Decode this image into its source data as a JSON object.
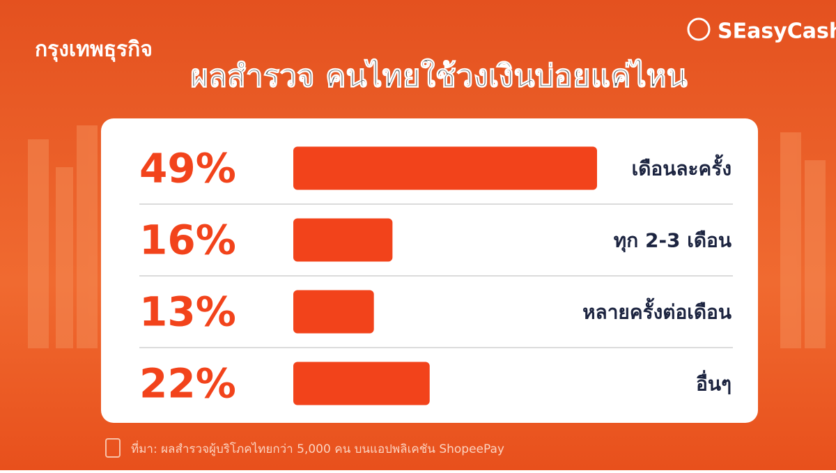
{
  "source": "กรุงเทพธุรกิจ",
  "brand": "SEasyCash",
  "chart_data": {
    "type": "bar",
    "orientation": "horizontal",
    "title": "ผลสำรวจ คนไทยใช้วงเงินบ่อยแค่ไหน",
    "categories": [
      "เดือนละครั้ง",
      "ทุก 2-3 เดือน",
      "หลายครั้งต่อเดือน",
      "อื่นๆ"
    ],
    "values": [
      49,
      16,
      13,
      22
    ],
    "value_labels": [
      "49%",
      "16%",
      "13%",
      "22%"
    ],
    "color": "#f2431b"
  },
  "footnote": "ที่มา: ผลสำรวจผู้บริโภคไทยกว่า 5,000 คน บนแอปพลิเคชัน ShopeePay"
}
